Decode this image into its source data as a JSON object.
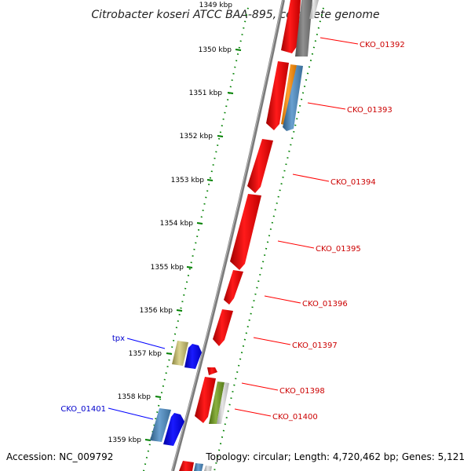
{
  "title": "Citrobacter koseri ATCC BAA-895, complete genome",
  "footer": {
    "accession": "Accession: NC_009792",
    "topology": "Topology: circular; Length: 4,720,462 bp; Genes: 5,121"
  },
  "scale": {
    "labels": [
      "1349 kbp",
      "1350 kbp",
      "1351 kbp",
      "1352 kbp",
      "1353 kbp",
      "1354 kbp",
      "1355 kbp",
      "1356 kbp",
      "1357 kbp",
      "1358 kbp",
      "1359 kbp"
    ]
  },
  "genes_reverse": [
    {
      "name": "CKO_01392",
      "color": "#ff0000"
    },
    {
      "name": "CKO_01393",
      "color": "#ff0000"
    },
    {
      "name": "CKO_01394",
      "color": "#ff0000"
    },
    {
      "name": "CKO_01395",
      "color": "#ff0000"
    },
    {
      "name": "CKO_01396",
      "color": "#ff0000"
    },
    {
      "name": "CKO_01397",
      "color": "#ff0000"
    },
    {
      "name": "CKO_01398",
      "color": "#ff0000"
    },
    {
      "name": "CKO_01400",
      "color": "#ff0000"
    }
  ],
  "genes_forward": [
    {
      "name": "tpx",
      "color": "#0000ff"
    },
    {
      "name": "CKO_01401",
      "color": "#0000ff"
    }
  ],
  "colors": {
    "backbone": "#888888",
    "tick": "#008000",
    "cds_red": "#ff0000",
    "cds_blue": "#0000ff",
    "steel_blue": "#4682b4",
    "orange": "#ff8c00",
    "olive": "#b8b060",
    "green": "#6b8e23",
    "grey": "#808080",
    "light_grey": "#c0c0c0",
    "label_red": "#cc0000",
    "label_blue": "#0000cc"
  }
}
